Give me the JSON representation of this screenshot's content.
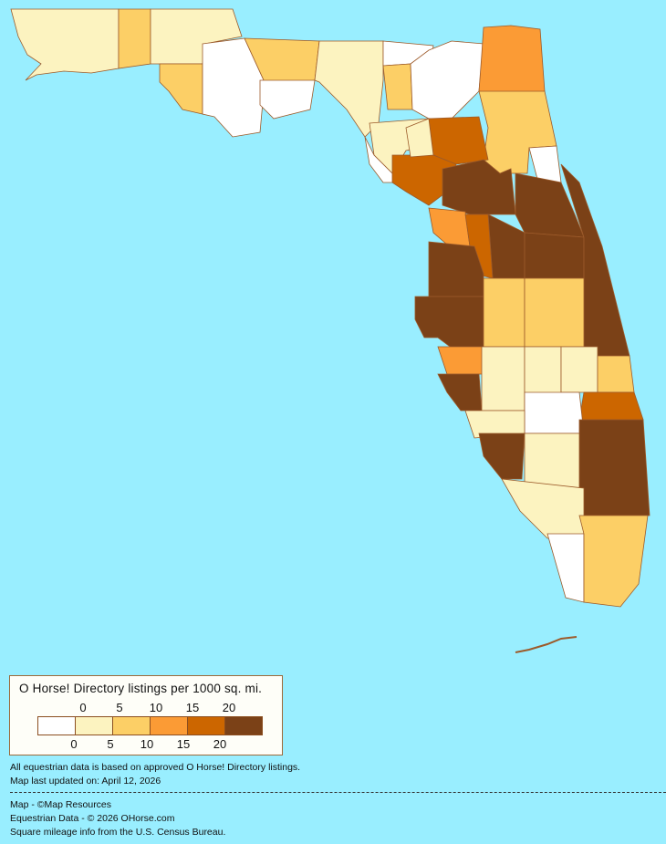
{
  "legend": {
    "title": "O Horse! Directory listings per 1000 sq. mi.",
    "ticks": [
      "0",
      "5",
      "10",
      "15",
      "20"
    ],
    "colors": [
      "#FFFFFF",
      "#FCF3C0",
      "#FCCF66",
      "#FB9B35",
      "#CC6600",
      "#7B4117"
    ]
  },
  "map": {
    "background": "#99EEFF",
    "border_color": "#9C5A2A",
    "region_categories": [
      1,
      2,
      1,
      2,
      0,
      2,
      0,
      1,
      0,
      2,
      0,
      1,
      0,
      3,
      2,
      0,
      4,
      4,
      1,
      5,
      5,
      5,
      5,
      5,
      3,
      4,
      5,
      5,
      2,
      2,
      3,
      5,
      1,
      1,
      1,
      2,
      4,
      0,
      1,
      5,
      1,
      5,
      1,
      0,
      2,
      0
    ]
  },
  "notes": {
    "line1": "All equestrian data is based on approved O Horse! Directory listings.",
    "line2": "Map last updated on: April 12, 2026"
  },
  "credits": {
    "map": "Map - ©Map Resources",
    "equestrian": "Equestrian Data - © 2026 OHorse.com",
    "census": "Square mileage info from the U.S. Census Bureau."
  }
}
